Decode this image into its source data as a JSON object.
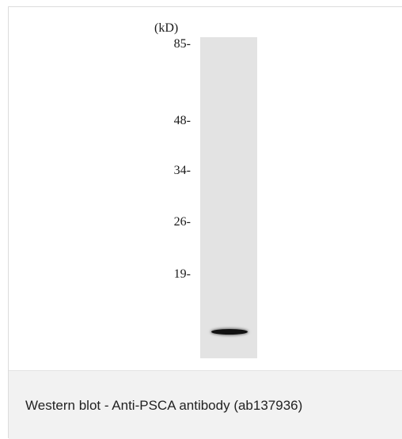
{
  "blot": {
    "unit_label": "(kD)",
    "markers": [
      "85-",
      "48-",
      "34-",
      "26-",
      "19-"
    ]
  },
  "caption": "Western blot - Anti-PSCA antibody (ab137936)",
  "colors": {
    "lane_background": "#e3e3e3",
    "band": "#111111",
    "caption_background": "#f2f2f2"
  }
}
